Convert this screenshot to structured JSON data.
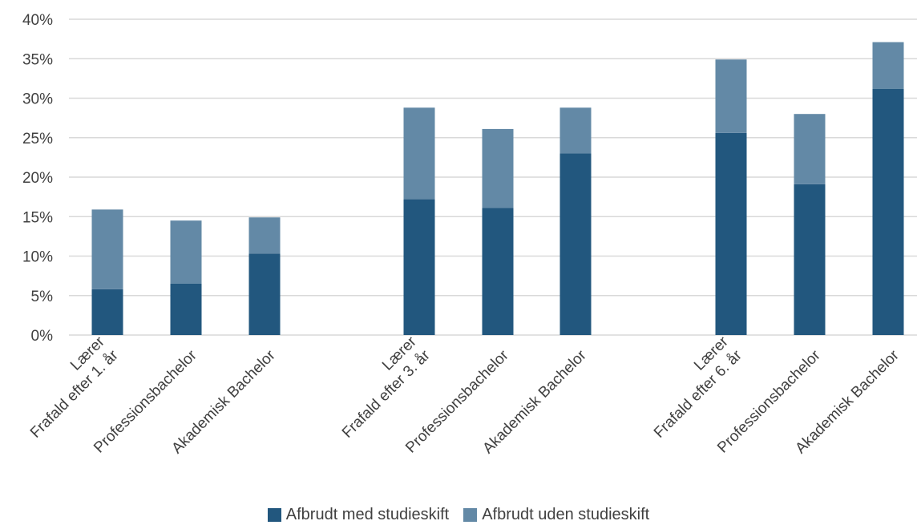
{
  "chart_data": {
    "type": "bar",
    "stacked": true,
    "title": "",
    "xlabel": "",
    "ylabel": "",
    "ylim": [
      0,
      40
    ],
    "yticks": [
      0,
      5,
      10,
      15,
      20,
      25,
      30,
      35,
      40
    ],
    "ytick_suffix": "%",
    "grid": true,
    "legend_position": "bottom",
    "groups": [
      "Frafald efter 1. år",
      "Frafald efter 3. år",
      "Frafald efter 6. år"
    ],
    "categories": [
      "Lærer",
      "Professionsbachelor",
      "Akademisk Bachelor",
      "Lærer",
      "Professionsbachelor",
      "Akademisk Bachelor",
      "Lærer",
      "Professionsbachelor",
      "Akademisk Bachelor"
    ],
    "series": [
      {
        "name": "Afbrudt med studieskift",
        "color": "#22577e",
        "values": [
          5.8,
          6.5,
          10.3,
          17.2,
          16.1,
          23.0,
          25.6,
          19.1,
          31.2
        ]
      },
      {
        "name": "Afbrudt uden studieskift",
        "color": "#6389a6",
        "values": [
          10.1,
          8.0,
          4.6,
          11.6,
          10.0,
          5.8,
          9.3,
          8.9,
          5.9
        ]
      }
    ]
  }
}
